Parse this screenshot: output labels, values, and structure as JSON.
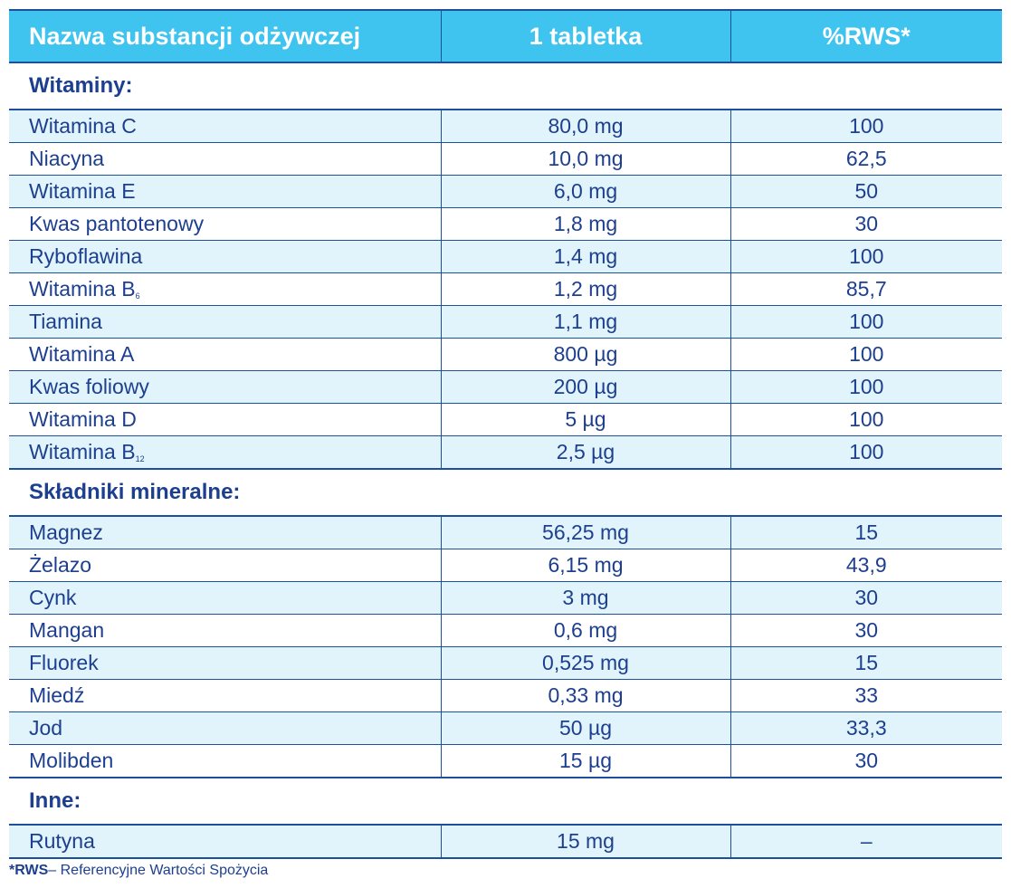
{
  "header": {
    "col_name": "Nazwa substancji odżywczej",
    "col_amount": "1 tabletka",
    "col_rws": "%RWS*"
  },
  "sections": [
    {
      "title": "Witaminy:",
      "rows": [
        {
          "name": "Witamina C",
          "sub": "",
          "amount": "80,0 mg",
          "rws": "100"
        },
        {
          "name": "Niacyna",
          "sub": "",
          "amount": "10,0 mg",
          "rws": "62,5"
        },
        {
          "name": "Witamina E",
          "sub": "",
          "amount": "6,0 mg",
          "rws": "50"
        },
        {
          "name": "Kwas pantotenowy",
          "sub": "",
          "amount": "1,8 mg",
          "rws": "30"
        },
        {
          "name": "Ryboflawina",
          "sub": "",
          "amount": "1,4 mg",
          "rws": "100"
        },
        {
          "name": "Witamina B",
          "sub": "6",
          "amount": "1,2 mg",
          "rws": "85,7"
        },
        {
          "name": "Tiamina",
          "sub": "",
          "amount": "1,1 mg",
          "rws": "100"
        },
        {
          "name": "Witamina A",
          "sub": "",
          "amount": "800 µg",
          "rws": "100"
        },
        {
          "name": "Kwas foliowy",
          "sub": "",
          "amount": "200 µg",
          "rws": "100"
        },
        {
          "name": "Witamina D",
          "sub": "",
          "amount": "5 µg",
          "rws": "100"
        },
        {
          "name": "Witamina B",
          "sub": "12",
          "amount": "2,5 µg",
          "rws": "100"
        }
      ]
    },
    {
      "title": "Składniki mineralne:",
      "rows": [
        {
          "name": "Magnez",
          "sub": "",
          "amount": "56,25 mg",
          "rws": "15"
        },
        {
          "name": "Żelazo",
          "sub": "",
          "amount": "6,15 mg",
          "rws": "43,9"
        },
        {
          "name": "Cynk",
          "sub": "",
          "amount": "3 mg",
          "rws": "30"
        },
        {
          "name": "Mangan",
          "sub": "",
          "amount": "0,6 mg",
          "rws": "30"
        },
        {
          "name": "Fluorek",
          "sub": "",
          "amount": "0,525 mg",
          "rws": "15"
        },
        {
          "name": "Miedź",
          "sub": "",
          "amount": "0,33 mg",
          "rws": "33"
        },
        {
          "name": "Jod",
          "sub": "",
          "amount": "50 µg",
          "rws": "33,3"
        },
        {
          "name": "Molibden",
          "sub": "",
          "amount": "15 µg",
          "rws": "30"
        }
      ]
    },
    {
      "title": "Inne:",
      "rows": [
        {
          "name": "Rutyna",
          "sub": "",
          "amount": "15 mg",
          "rws": "–"
        }
      ]
    }
  ],
  "footnote": {
    "term": "*RWS",
    "text": "– Referencyjne Wartości Spożycia"
  },
  "colors": {
    "header_bg": "#3fc3ef",
    "row_shade": "#e1f4fb",
    "text": "#1d3f8f",
    "rule": "#1d4f9b"
  }
}
